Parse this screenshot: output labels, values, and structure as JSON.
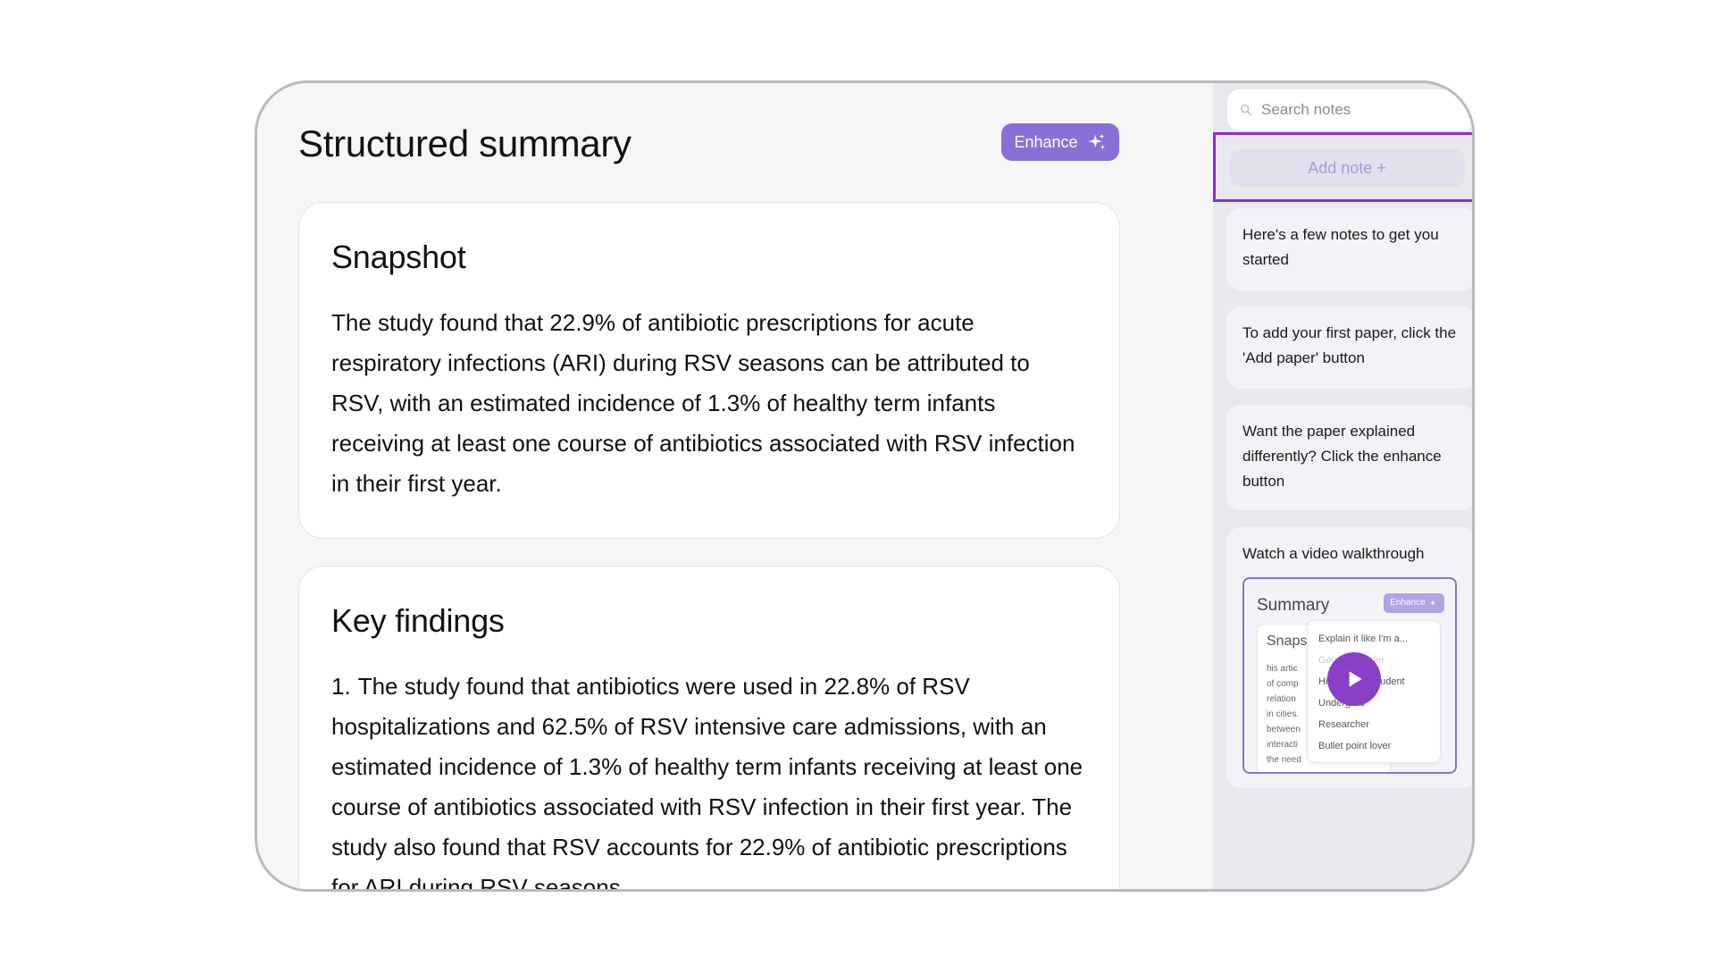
{
  "main": {
    "title": "Structured summary",
    "enhance_label": "Enhance",
    "snapshot": {
      "heading": "Snapshot",
      "body": "The study found that 22.9% of antibiotic prescriptions for acute respiratory infections (ARI) during RSV seasons can be attributed to RSV, with an estimated incidence of 1.3% of healthy term infants receiving at least one course of antibiotics associated with RSV infection in their first year."
    },
    "key_findings": {
      "heading": "Key findings",
      "items": [
        {
          "number": "1.",
          "text": "The study found that antibiotics were used in 22.8% of RSV hospitalizations and 62.5% of RSV intensive care admissions, with an estimated incidence of 1.3% of healthy term infants receiving at least one course of antibiotics associated with RSV infection in their first year. The study also found that RSV accounts for 22.9% of antibiotic prescriptions for ARI during RSV seasons."
        }
      ]
    }
  },
  "sidebar": {
    "search_placeholder": "Search notes",
    "add_note_label": "Add note +",
    "notes": [
      {
        "text": "Here's a few notes to get you started"
      },
      {
        "text": "To add your first paper, click the 'Add paper' button"
      },
      {
        "text": "Want the paper explained differently? Click the enhance button"
      },
      {
        "text": "Watch a video walkthrough"
      }
    ],
    "video": {
      "title": "Summary",
      "enhance_label": "Enhance",
      "card_heading": "Snaps",
      "card_lines": [
        "his artic",
        "of comp",
        "relation",
        "in cities.",
        "between",
        "interacti",
        "the need"
      ],
      "menu_title": "Explain it like I'm a...",
      "menu_items": [
        "General reader",
        "High school student",
        "Undergrad",
        "Researcher",
        "Bullet point lover"
      ]
    }
  },
  "colors": {
    "accent": "#8b6fd6",
    "highlight_border": "#8a2be2",
    "play_button": "#8a3fc8"
  }
}
